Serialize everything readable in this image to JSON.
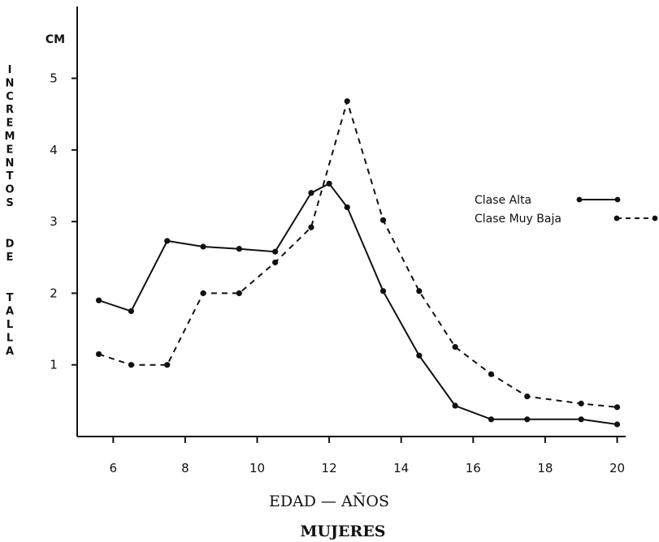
{
  "chart_data": {
    "type": "line",
    "title": "MUJERES",
    "xlabel": "EDAD — AÑOS",
    "ylabel": "INCREMENTOS DE TALLA",
    "yunit": "CM",
    "xlim": [
      5,
      20.5
    ],
    "ylim": [
      0,
      5
    ],
    "xticks": [
      6,
      8,
      10,
      12,
      14,
      16,
      18,
      20
    ],
    "yticks": [
      1,
      2,
      3,
      4,
      5
    ],
    "grid": false,
    "legend_position": "right",
    "series": [
      {
        "name": "Clase Alta",
        "style": "solid",
        "color": "#111111",
        "x": [
          5.6,
          6.5,
          7.5,
          8.5,
          9.5,
          10.5,
          11.5,
          12.0,
          12.5,
          13.5,
          14.5,
          15.5,
          16.5,
          17.5,
          19.0,
          20.0
        ],
        "y": [
          1.9,
          1.75,
          2.73,
          2.65,
          2.62,
          2.58,
          3.4,
          3.53,
          3.2,
          2.03,
          1.13,
          0.43,
          0.24,
          0.24,
          0.24,
          0.17
        ]
      },
      {
        "name": "Clase Muy Baja",
        "style": "dashed",
        "color": "#111111",
        "x": [
          5.6,
          6.5,
          7.5,
          8.5,
          9.5,
          10.5,
          11.5,
          12.5,
          13.5,
          14.5,
          15.5,
          16.5,
          17.5,
          19.0,
          20.0
        ],
        "y": [
          1.15,
          1.0,
          1.0,
          2.0,
          2.0,
          2.43,
          2.92,
          4.68,
          3.02,
          2.03,
          1.25,
          0.87,
          0.56,
          0.46,
          0.41
        ]
      }
    ]
  }
}
